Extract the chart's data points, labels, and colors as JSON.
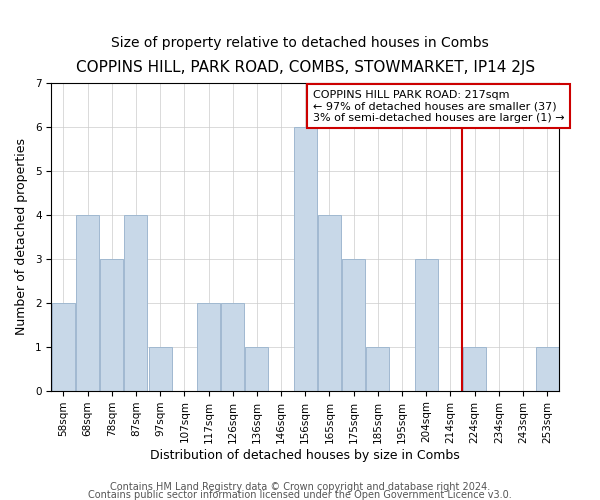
{
  "title": "COPPINS HILL, PARK ROAD, COMBS, STOWMARKET, IP14 2JS",
  "subtitle": "Size of property relative to detached houses in Combs",
  "xlabel": "Distribution of detached houses by size in Combs",
  "ylabel": "Number of detached properties",
  "bar_labels": [
    "58sqm",
    "68sqm",
    "78sqm",
    "87sqm",
    "97sqm",
    "107sqm",
    "117sqm",
    "126sqm",
    "136sqm",
    "146sqm",
    "156sqm",
    "165sqm",
    "175sqm",
    "185sqm",
    "195sqm",
    "204sqm",
    "214sqm",
    "224sqm",
    "234sqm",
    "243sqm",
    "253sqm"
  ],
  "bar_values": [
    2,
    4,
    3,
    4,
    1,
    0,
    2,
    2,
    1,
    0,
    6,
    4,
    3,
    1,
    0,
    3,
    0,
    1,
    0,
    0,
    1
  ],
  "bar_color": "#c8d8e8",
  "bar_edge_color": "#a0b8d0",
  "reference_line_x": 16.5,
  "reference_line_color": "#cc0000",
  "ylim": [
    0,
    7
  ],
  "yticks": [
    0,
    1,
    2,
    3,
    4,
    5,
    6,
    7
  ],
  "annotation_line1": "COPPINS HILL PARK ROAD: 217sqm",
  "annotation_line2": "← 97% of detached houses are smaller (37)",
  "annotation_line3": "3% of semi-detached houses are larger (1) →",
  "annotation_box_color": "#ffffff",
  "annotation_box_edge_color": "#cc0000",
  "footer_line1": "Contains HM Land Registry data © Crown copyright and database right 2024.",
  "footer_line2": "Contains public sector information licensed under the Open Government Licence v3.0.",
  "title_fontsize": 11,
  "subtitle_fontsize": 10,
  "axis_label_fontsize": 9,
  "tick_fontsize": 7.5,
  "annotation_fontsize": 8,
  "footer_fontsize": 7
}
